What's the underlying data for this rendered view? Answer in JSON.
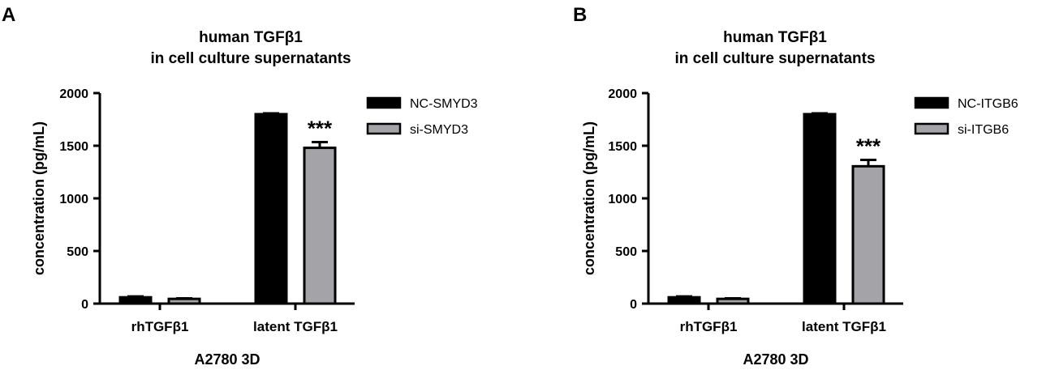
{
  "chart_data": [
    {
      "panel_label": "A",
      "type": "bar",
      "title_lines": [
        "human TGFβ1",
        "in cell culture supernatants"
      ],
      "xlabel": "A2780 3D",
      "ylabel": "concentration (pg/mL)",
      "ylim": [
        0,
        2000
      ],
      "yticks": [
        0,
        500,
        1000,
        1500,
        2000
      ],
      "categories": [
        "rhTGFβ1",
        "latent TGFβ1"
      ],
      "series": [
        {
          "name": "NC-SMYD3",
          "color": "#000000",
          "values": [
            60,
            1800
          ],
          "errors": [
            8,
            8
          ]
        },
        {
          "name": "si-SMYD3",
          "color": "#a3a3a8",
          "values": [
            45,
            1480
          ],
          "errors": [
            5,
            55
          ]
        }
      ],
      "annotations": [
        {
          "category": 1,
          "series": 1,
          "text": "***"
        }
      ],
      "legend_position": "right"
    },
    {
      "panel_label": "B",
      "type": "bar",
      "title_lines": [
        "human TGFβ1",
        "in cell culture supernatants"
      ],
      "xlabel": "A2780 3D",
      "ylabel": "concentration (pg/mL)",
      "ylim": [
        0,
        2000
      ],
      "yticks": [
        0,
        500,
        1000,
        1500,
        2000
      ],
      "categories": [
        "rhTGFβ1",
        "latent TGFβ1"
      ],
      "series": [
        {
          "name": "NC-ITGB6",
          "color": "#000000",
          "values": [
            60,
            1800
          ],
          "errors": [
            8,
            8
          ]
        },
        {
          "name": "si-ITGB6",
          "color": "#a3a3a8",
          "values": [
            45,
            1305
          ],
          "errors": [
            5,
            60
          ]
        }
      ],
      "annotations": [
        {
          "category": 1,
          "series": 1,
          "text": "***"
        }
      ],
      "legend_position": "right"
    }
  ]
}
